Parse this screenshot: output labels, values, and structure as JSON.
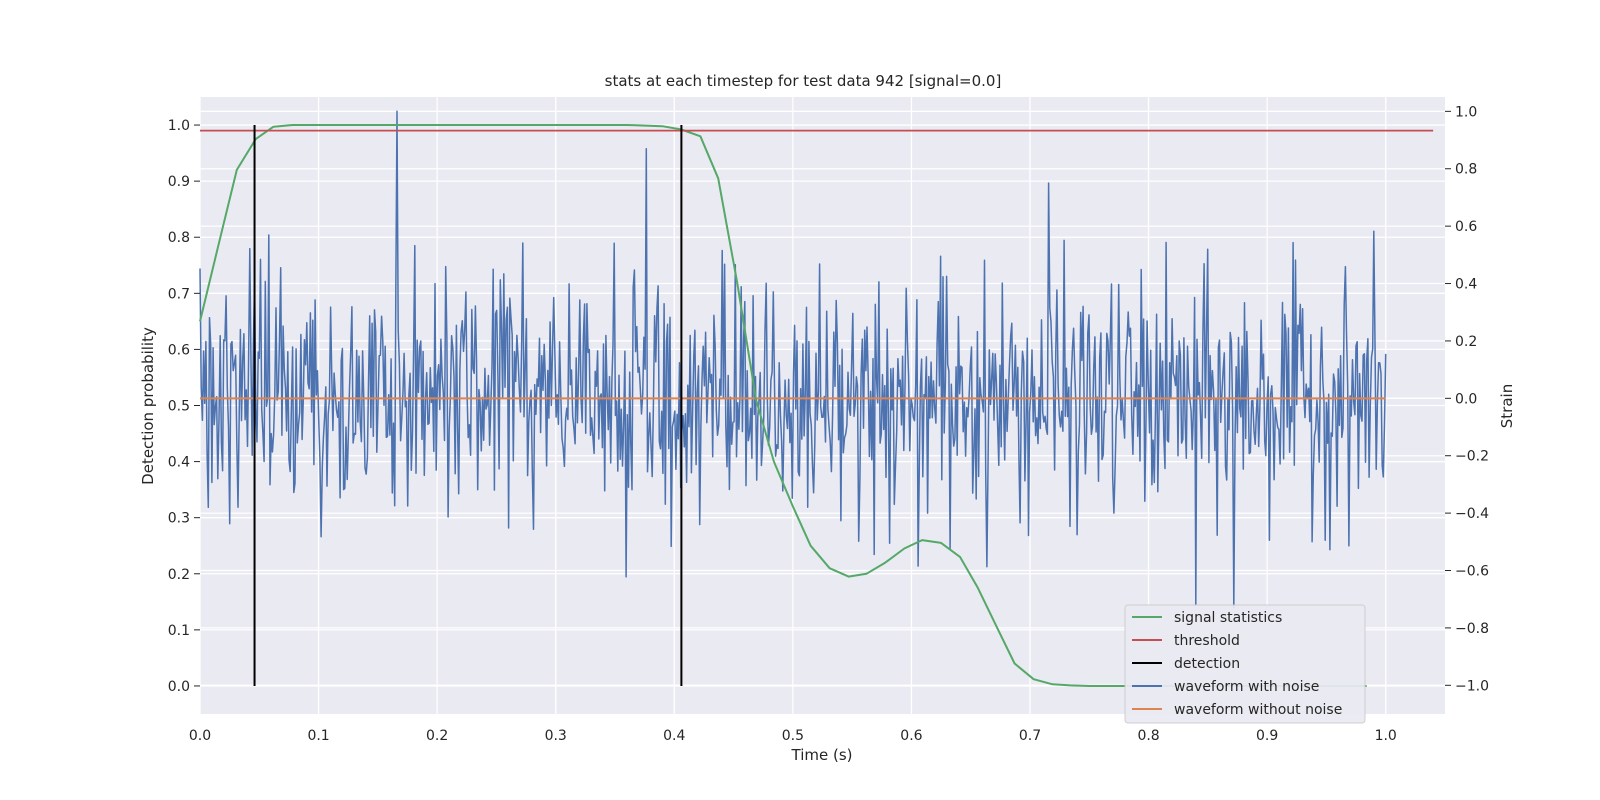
{
  "chart_data": {
    "type": "line",
    "title": "stats at each timestep for test data 942 [signal=0.0]",
    "xlabel": "Time (s)",
    "ylabel": "Detection probability",
    "ylabel_right": "Strain",
    "xlim": [
      0.0,
      1.05
    ],
    "ylim": [
      -0.05,
      1.05
    ],
    "ylim_right": [
      -1.1,
      1.05
    ],
    "xticks": [
      "0.0",
      "0.1",
      "0.2",
      "0.3",
      "0.4",
      "0.5",
      "0.6",
      "0.7",
      "0.8",
      "0.9",
      "1.0"
    ],
    "yticks": [
      "0.0",
      "0.1",
      "0.2",
      "0.3",
      "0.4",
      "0.5",
      "0.6",
      "0.7",
      "0.8",
      "0.9",
      "1.0"
    ],
    "yticks_right": [
      "-1.0",
      "-0.8",
      "-0.6",
      "-0.4",
      "-0.2",
      "0.0",
      "0.2",
      "0.4",
      "0.6",
      "0.8",
      "1.0"
    ],
    "grid": true,
    "legend_position": "lower-right",
    "series": [
      {
        "name": "signal statistics",
        "color": "#55a868",
        "axis": "left",
        "x": [
          0.0,
          0.016,
          0.031,
          0.047,
          0.062,
          0.078,
          0.1,
          0.2,
          0.3,
          0.36,
          0.39,
          0.406,
          0.422,
          0.437,
          0.453,
          0.469,
          0.484,
          0.5,
          0.515,
          0.531,
          0.547,
          0.562,
          0.578,
          0.594,
          0.609,
          0.625,
          0.641,
          0.656,
          0.672,
          0.687,
          0.703,
          0.719,
          0.734,
          0.75,
          0.8,
          0.9,
          0.984
        ],
        "y": [
          0.65,
          0.79,
          0.92,
          0.975,
          0.997,
          1.0,
          1.0,
          1.0,
          1.0,
          1.0,
          0.998,
          0.992,
          0.98,
          0.905,
          0.72,
          0.51,
          0.4,
          0.32,
          0.25,
          0.21,
          0.195,
          0.2,
          0.22,
          0.245,
          0.26,
          0.255,
          0.23,
          0.175,
          0.105,
          0.04,
          0.012,
          0.003,
          0.001,
          0.0,
          0.0,
          0.0,
          0.0
        ]
      },
      {
        "name": "threshold",
        "color": "#c44e52",
        "axis": "left",
        "x": [
          0.0,
          1.04
        ],
        "y": [
          0.99,
          0.99
        ]
      },
      {
        "name": "detection",
        "color": "#000000",
        "axis": "left",
        "x": [
          0.046,
          0.406
        ],
        "y_range": [
          0.0,
          1.0
        ]
      },
      {
        "name": "waveform with noise",
        "color": "#4c72b0",
        "axis": "right",
        "x_range": [
          0.0,
          1.0
        ],
        "count": 1000,
        "y_range": [
          -0.75,
          1.0
        ],
        "peaks": [
          {
            "x": 0.166,
            "y": 1.0
          },
          {
            "x": 0.376,
            "y": 0.87
          },
          {
            "x": 0.716,
            "y": 0.75
          },
          {
            "x": 0.84,
            "y": -0.72
          },
          {
            "x": 0.872,
            "y": -0.73
          }
        ]
      },
      {
        "name": "waveform without noise",
        "color": "#dd8452",
        "axis": "right",
        "x": [
          0.0,
          1.0
        ],
        "y": [
          0.0,
          0.0
        ]
      }
    ]
  }
}
